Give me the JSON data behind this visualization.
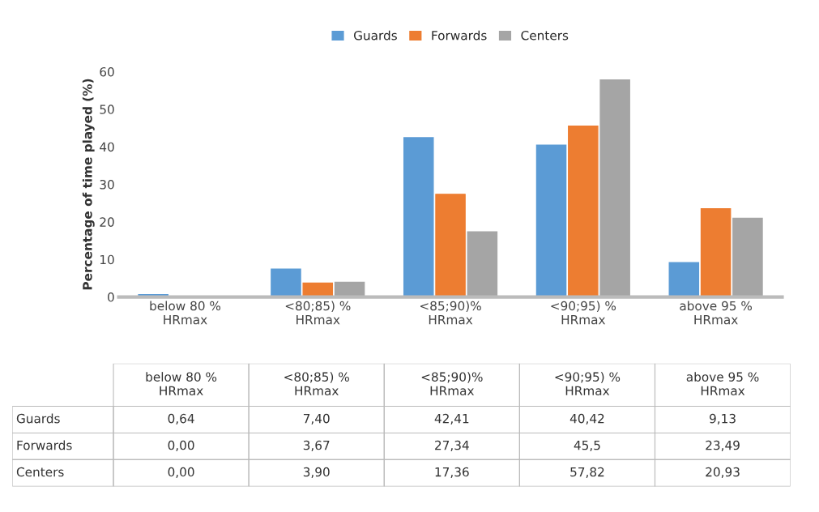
{
  "chart_data": {
    "type": "bar",
    "ylabel": "Percentage of time played (%)",
    "categories": [
      "below 80 %\nHRmax",
      "<80;85) %\nHRmax",
      "<85;90)%\nHRmax",
      "<90;95) %\nHRmax",
      "above 95 %\nHRmax"
    ],
    "series": [
      {
        "name": "Guards",
        "color": "#5b9bd5",
        "values": [
          0.64,
          7.4,
          42.41,
          40.42,
          9.13
        ],
        "value_labels": [
          "0,64",
          "7,40",
          "42,41",
          "40,42",
          "9,13"
        ]
      },
      {
        "name": "Forwards",
        "color": "#ed7d31",
        "values": [
          0.0,
          3.67,
          27.34,
          45.5,
          23.49
        ],
        "value_labels": [
          "0,00",
          "3,67",
          "27,34",
          "45,5",
          "23,49"
        ]
      },
      {
        "name": "Centers",
        "color": "#a5a5a5",
        "values": [
          0.0,
          3.9,
          17.36,
          57.82,
          20.93
        ],
        "value_labels": [
          "0,00",
          "3,90",
          "17,36",
          "57,82",
          "20,93"
        ]
      }
    ],
    "ylim": [
      0,
      60
    ],
    "yticks": [
      0,
      10,
      20,
      30,
      40,
      50,
      60
    ],
    "grid": false,
    "legend": "top"
  }
}
